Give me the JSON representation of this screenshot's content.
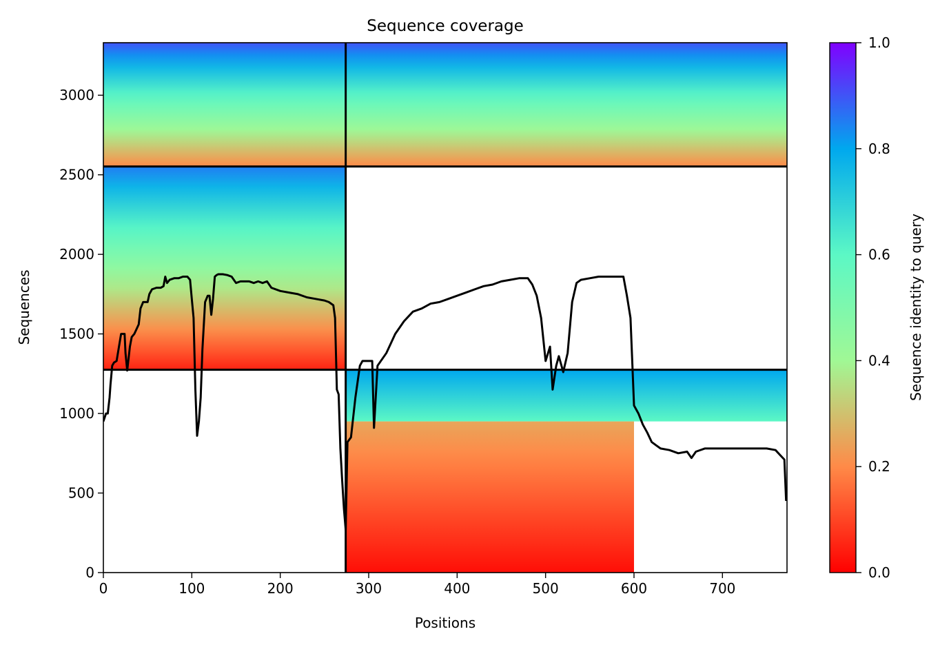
{
  "chart_data": {
    "type": "heatmap",
    "title": "Sequence coverage",
    "xlabel": "Positions",
    "ylabel": "Sequences",
    "xlim": [
      0,
      773
    ],
    "ylim": [
      0,
      3330
    ],
    "xticks": [
      0,
      100,
      200,
      300,
      400,
      500,
      600,
      700
    ],
    "yticks": [
      0,
      500,
      1000,
      1500,
      2000,
      2500,
      3000
    ],
    "grid": false,
    "colormap": "rainbow_r",
    "colorbar": {
      "label": "Sequence identity to query",
      "range": [
        0.0,
        1.0
      ],
      "ticks": [
        "0.0",
        "0.2",
        "0.4",
        "0.6",
        "0.8",
        "1.0"
      ]
    },
    "chain_boundaries": {
      "vertical_x": [
        274
      ],
      "horizontal_y": [
        1275,
        2552
      ]
    },
    "blocks": [
      {
        "x0": 0,
        "x1": 274,
        "y0": 1275,
        "y1": 2552,
        "identity_bottom": 0.05,
        "identity_top": 0.85
      },
      {
        "x0": 0,
        "x1": 274,
        "y0": 2552,
        "y1": 3330,
        "identity_bottom": 0.2,
        "identity_top": 0.9
      },
      {
        "x0": 274,
        "x1": 773,
        "y0": 2552,
        "y1": 3330,
        "identity_bottom": 0.2,
        "identity_top": 0.9
      },
      {
        "x0": 274,
        "x1": 773,
        "y0": 950,
        "y1": 1275,
        "identity_bottom": 0.6,
        "identity_top": 0.8
      },
      {
        "x0": 274,
        "x1": 600,
        "y0": 0,
        "y1": 950,
        "identity_bottom": 0.02,
        "identity_top": 0.25
      }
    ],
    "coverage_line": {
      "x": [
        0,
        3,
        5,
        7,
        8,
        10,
        12,
        15,
        20,
        22,
        24,
        25,
        27,
        30,
        32,
        35,
        40,
        42,
        45,
        50,
        52,
        55,
        60,
        65,
        68,
        70,
        72,
        75,
        80,
        85,
        90,
        95,
        98,
        100,
        102,
        104,
        106,
        108,
        110,
        112,
        115,
        118,
        120,
        122,
        124,
        126,
        128,
        130,
        135,
        140,
        145,
        150,
        155,
        160,
        165,
        170,
        175,
        180,
        185,
        190,
        200,
        210,
        220,
        230,
        240,
        250,
        255,
        260,
        262,
        264,
        266,
        268,
        270,
        272,
        274,
        276,
        280,
        285,
        290,
        293,
        296,
        300,
        304,
        306,
        310,
        320,
        330,
        340,
        350,
        360,
        370,
        380,
        390,
        400,
        410,
        420,
        430,
        440,
        450,
        460,
        470,
        475,
        480,
        485,
        490,
        495,
        500,
        505,
        508,
        512,
        515,
        520,
        525,
        530,
        535,
        540,
        550,
        560,
        570,
        580,
        588,
        592,
        596,
        600,
        605,
        610,
        615,
        620,
        625,
        630,
        640,
        650,
        660,
        665,
        670,
        680,
        700,
        720,
        740,
        750,
        760,
        765,
        770,
        772
      ],
      "y": [
        950,
        1000,
        1000,
        1100,
        1180,
        1300,
        1320,
        1330,
        1500,
        1500,
        1500,
        1380,
        1270,
        1420,
        1480,
        1500,
        1560,
        1660,
        1700,
        1700,
        1750,
        1780,
        1790,
        1790,
        1800,
        1860,
        1820,
        1840,
        1850,
        1850,
        1860,
        1860,
        1840,
        1720,
        1600,
        1150,
        860,
        950,
        1100,
        1400,
        1700,
        1740,
        1740,
        1620,
        1720,
        1860,
        1870,
        1875,
        1875,
        1870,
        1860,
        1820,
        1830,
        1830,
        1830,
        1820,
        1830,
        1820,
        1830,
        1790,
        1770,
        1760,
        1750,
        1730,
        1720,
        1710,
        1700,
        1680,
        1600,
        1150,
        1120,
        780,
        580,
        400,
        270,
        820,
        850,
        1100,
        1300,
        1330,
        1330,
        1330,
        1330,
        910,
        1300,
        1380,
        1500,
        1580,
        1640,
        1660,
        1690,
        1700,
        1720,
        1740,
        1760,
        1780,
        1800,
        1810,
        1830,
        1840,
        1850,
        1850,
        1850,
        1810,
        1740,
        1600,
        1330,
        1420,
        1150,
        1300,
        1360,
        1260,
        1380,
        1700,
        1820,
        1840,
        1850,
        1860,
        1860,
        1860,
        1860,
        1740,
        1600,
        1050,
        1000,
        930,
        880,
        820,
        800,
        780,
        770,
        750,
        760,
        720,
        760,
        780,
        780,
        780,
        780,
        780,
        770,
        740,
        710,
        450
      ]
    }
  }
}
